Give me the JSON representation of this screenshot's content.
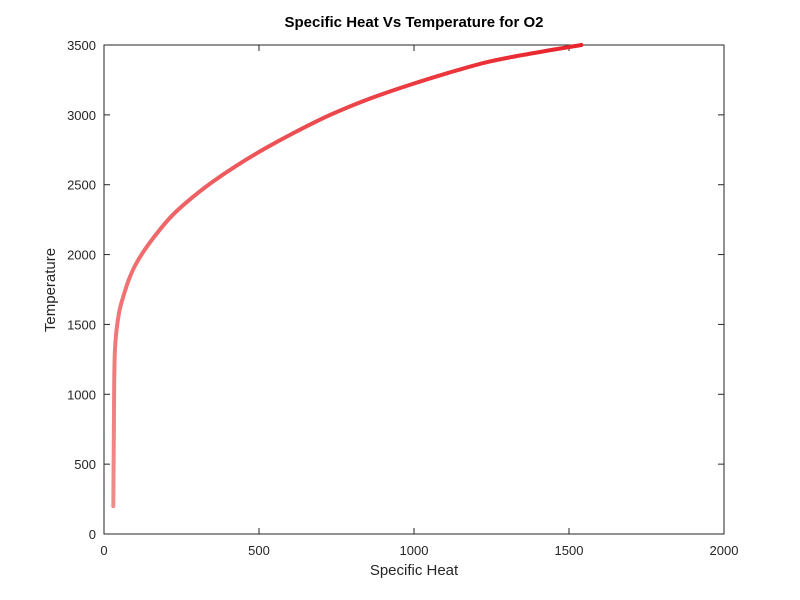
{
  "chart_data": {
    "type": "line",
    "title": "Specific Heat Vs Temperature for O2",
    "xlabel": "Specific Heat",
    "ylabel": "Temperature",
    "xlim": [
      0,
      2000
    ],
    "ylim": [
      0,
      3500
    ],
    "xticks": [
      0,
      500,
      1000,
      1500,
      2000
    ],
    "yticks": [
      0,
      500,
      1000,
      1500,
      2000,
      2500,
      3000,
      3500
    ],
    "grid": false,
    "line_color_start": "#f28b8b",
    "line_color_end": "#e8242b",
    "series": [
      {
        "points": [
          [
            30,
            200
          ],
          [
            31,
            500
          ],
          [
            32,
            800
          ],
          [
            33,
            1100
          ],
          [
            35,
            1300
          ],
          [
            40,
            1450
          ],
          [
            50,
            1600
          ],
          [
            65,
            1720
          ],
          [
            80,
            1820
          ],
          [
            100,
            1920
          ],
          [
            130,
            2030
          ],
          [
            170,
            2150
          ],
          [
            220,
            2280
          ],
          [
            280,
            2400
          ],
          [
            350,
            2520
          ],
          [
            430,
            2640
          ],
          [
            520,
            2760
          ],
          [
            620,
            2880
          ],
          [
            730,
            3000
          ],
          [
            850,
            3110
          ],
          [
            980,
            3210
          ],
          [
            1110,
            3300
          ],
          [
            1240,
            3380
          ],
          [
            1380,
            3440
          ],
          [
            1540,
            3500
          ]
        ]
      }
    ]
  }
}
